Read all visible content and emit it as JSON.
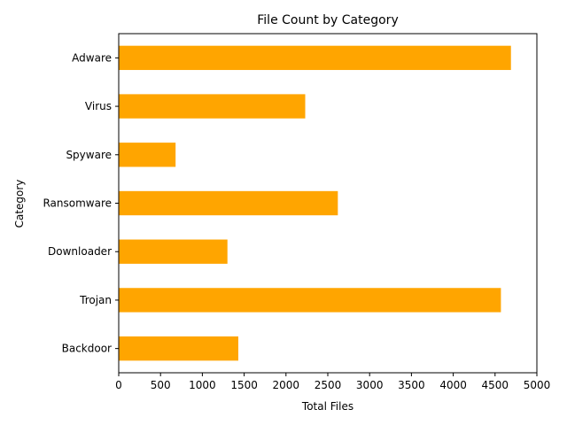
{
  "chart_data": {
    "type": "bar",
    "orientation": "horizontal",
    "title": "File Count by Category",
    "xlabel": "Total Files",
    "ylabel": "Category",
    "categories": [
      "Backdoor",
      "Trojan",
      "Downloader",
      "Ransomware",
      "Spyware",
      "Virus",
      "Adware"
    ],
    "values": [
      1430,
      4570,
      1300,
      2620,
      680,
      2230,
      4690
    ],
    "xlim": [
      0,
      5000
    ],
    "xticks": [
      "0",
      "500",
      "1000",
      "1500",
      "2000",
      "2500",
      "3000",
      "3500",
      "4000",
      "4500",
      "5000"
    ],
    "bar_color": "#ffa500",
    "grid": false,
    "legend": "none"
  }
}
